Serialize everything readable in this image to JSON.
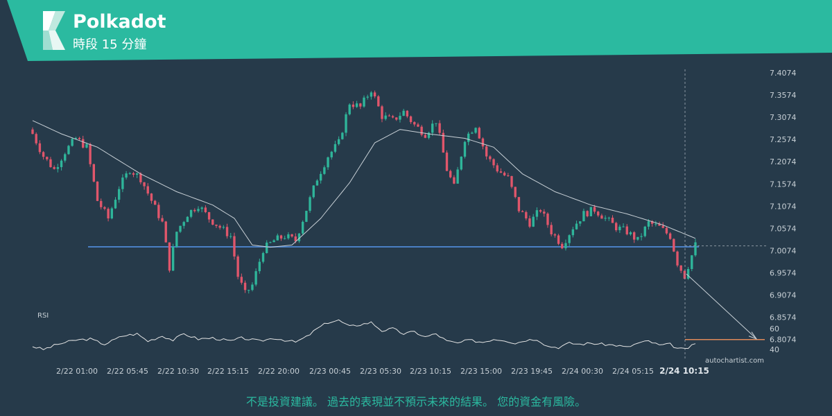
{
  "header": {
    "title": "Polkadot",
    "subtitle": "時段 15 分鐘",
    "brand_color": "#2bbaa0"
  },
  "disclaimer": "不是投資建議。 過去的表現並不預示未來的結果。 您的資金有風險。",
  "watermark": "autochartist.com",
  "colors": {
    "background": "#263a4a",
    "bull": "#2fb59a",
    "bear": "#e0566b",
    "support": "#4a7fc4",
    "target": "#e08a5a",
    "ma": "#c8d0d6",
    "rsi": "#e6e6e6"
  },
  "chart_data": [
    {
      "type": "candlestick",
      "y_ticks": [
        "7.4074",
        "7.3574",
        "7.3074",
        "7.2574",
        "7.2074",
        "7.1574",
        "7.1074",
        "7.0574",
        "7.0074",
        "6.9574",
        "6.9074",
        "6.8574",
        "6.8074"
      ],
      "ylim": [
        6.8,
        7.41
      ],
      "x_ticks": [
        "2/22 01:00",
        "2/22 05:45",
        "2/22 10:30",
        "2/22 15:15",
        "2/22 20:00",
        "2/23 00:45",
        "2/23 05:30",
        "2/23 10:15",
        "2/23 15:00",
        "2/23 19:45",
        "2/24 00:30",
        "2/24 05:15",
        "2/24 10:15"
      ],
      "highlight_x_label": "2/24 10:15",
      "support_level": 7.016,
      "target_level": 6.8074,
      "last_price": 7.018,
      "close_path": [
        [
          0,
          7.27
        ],
        [
          3,
          7.22
        ],
        [
          6,
          7.19
        ],
        [
          9,
          7.23
        ],
        [
          12,
          7.26
        ],
        [
          15,
          7.24
        ],
        [
          18,
          7.12
        ],
        [
          21,
          7.08
        ],
        [
          24,
          7.15
        ],
        [
          27,
          7.19
        ],
        [
          30,
          7.17
        ],
        [
          33,
          7.12
        ],
        [
          36,
          7.07
        ],
        [
          38,
          6.97
        ],
        [
          40,
          7.05
        ],
        [
          43,
          7.09
        ],
        [
          46,
          7.11
        ],
        [
          49,
          7.08
        ],
        [
          52,
          7.06
        ],
        [
          55,
          7.04
        ],
        [
          57,
          6.95
        ],
        [
          59,
          6.91
        ],
        [
          61,
          6.93
        ],
        [
          64,
          7.01
        ],
        [
          67,
          7.03
        ],
        [
          70,
          7.04
        ],
        [
          73,
          7.03
        ],
        [
          76,
          7.1
        ],
        [
          79,
          7.17
        ],
        [
          82,
          7.22
        ],
        [
          85,
          7.25
        ],
        [
          88,
          7.34
        ],
        [
          91,
          7.33
        ],
        [
          94,
          7.37
        ],
        [
          97,
          7.31
        ],
        [
          100,
          7.3
        ],
        [
          103,
          7.32
        ],
        [
          106,
          7.29
        ],
        [
          109,
          7.27
        ],
        [
          112,
          7.3
        ],
        [
          115,
          7.19
        ],
        [
          117,
          7.15
        ],
        [
          120,
          7.26
        ],
        [
          123,
          7.29
        ],
        [
          126,
          7.22
        ],
        [
          129,
          7.19
        ],
        [
          132,
          7.17
        ],
        [
          135,
          7.1
        ],
        [
          138,
          7.07
        ],
        [
          141,
          7.1
        ],
        [
          144,
          7.05
        ],
        [
          147,
          7.02
        ],
        [
          150,
          7.06
        ],
        [
          153,
          7.09
        ],
        [
          156,
          7.1
        ],
        [
          159,
          7.08
        ],
        [
          162,
          7.06
        ],
        [
          165,
          7.05
        ],
        [
          168,
          7.03
        ],
        [
          171,
          7.07
        ],
        [
          174,
          7.06
        ],
        [
          177,
          7.04
        ],
        [
          179,
          6.98
        ],
        [
          181,
          6.95
        ],
        [
          184,
          7.02
        ]
      ],
      "ma_path": [
        [
          0,
          7.3
        ],
        [
          8,
          7.27
        ],
        [
          18,
          7.24
        ],
        [
          30,
          7.18
        ],
        [
          40,
          7.14
        ],
        [
          50,
          7.11
        ],
        [
          56,
          7.08
        ],
        [
          61,
          7.02
        ],
        [
          66,
          7.015
        ],
        [
          72,
          7.02
        ],
        [
          80,
          7.08
        ],
        [
          88,
          7.16
        ],
        [
          95,
          7.25
        ],
        [
          102,
          7.28
        ],
        [
          110,
          7.27
        ],
        [
          120,
          7.26
        ],
        [
          128,
          7.24
        ],
        [
          136,
          7.18
        ],
        [
          145,
          7.14
        ],
        [
          155,
          7.11
        ],
        [
          165,
          7.09
        ],
        [
          175,
          7.065
        ],
        [
          181,
          7.045
        ],
        [
          184,
          7.035
        ]
      ]
    },
    {
      "type": "line",
      "series_label": "RSI",
      "y_ticks": [
        "60",
        "40"
      ],
      "ylim": [
        33,
        73
      ],
      "rsi_path": [
        [
          0,
          43
        ],
        [
          3,
          40
        ],
        [
          7,
          45
        ],
        [
          12,
          49
        ],
        [
          16,
          50
        ],
        [
          20,
          45
        ],
        [
          25,
          53
        ],
        [
          29,
          55
        ],
        [
          32,
          48
        ],
        [
          36,
          53
        ],
        [
          39,
          49
        ],
        [
          42,
          55
        ],
        [
          46,
          50
        ],
        [
          50,
          51
        ],
        [
          55,
          48
        ],
        [
          58,
          51
        ],
        [
          63,
          48
        ],
        [
          67,
          51
        ],
        [
          70,
          49
        ],
        [
          73,
          47
        ],
        [
          76,
          52
        ],
        [
          79,
          60
        ],
        [
          82,
          66
        ],
        [
          85,
          68
        ],
        [
          88,
          62
        ],
        [
          91,
          64
        ],
        [
          94,
          66
        ],
        [
          97,
          58
        ],
        [
          100,
          60
        ],
        [
          103,
          55
        ],
        [
          106,
          57
        ],
        [
          109,
          52
        ],
        [
          112,
          55
        ],
        [
          115,
          48
        ],
        [
          118,
          46
        ],
        [
          121,
          49
        ],
        [
          125,
          47
        ],
        [
          128,
          50
        ],
        [
          131,
          49
        ],
        [
          134,
          46
        ],
        [
          137,
          49
        ],
        [
          140,
          50
        ],
        [
          143,
          43
        ],
        [
          146,
          42
        ],
        [
          149,
          46
        ],
        [
          152,
          45
        ],
        [
          155,
          46
        ],
        [
          158,
          45
        ],
        [
          162,
          44
        ],
        [
          165,
          42
        ],
        [
          168,
          46
        ],
        [
          171,
          48
        ],
        [
          174,
          44
        ],
        [
          177,
          45
        ],
        [
          179,
          41
        ],
        [
          181,
          40
        ],
        [
          184,
          45
        ]
      ]
    }
  ]
}
